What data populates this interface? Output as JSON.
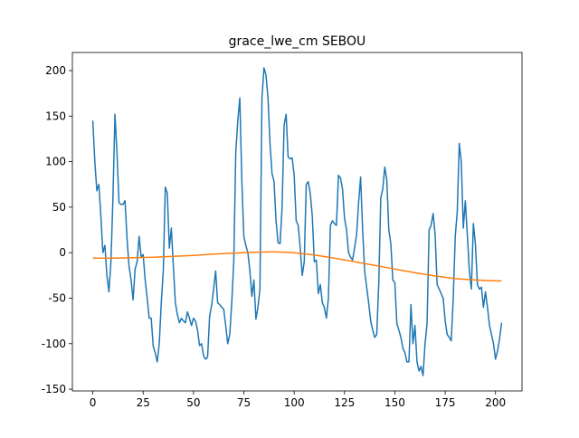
{
  "chart_data": {
    "type": "line",
    "title": "grace_lwe_cm SEBOU",
    "series": [
      {
        "color": "#1f77b4",
        "x": [
          0,
          1,
          2,
          3,
          4,
          5,
          6,
          7,
          8,
          9,
          10,
          11,
          12,
          13,
          14,
          15,
          16,
          17,
          18,
          19,
          20,
          21,
          22,
          23,
          24,
          25,
          26,
          27,
          28,
          29,
          30,
          31,
          32,
          33,
          34,
          35,
          36,
          37,
          38,
          39,
          40,
          41,
          42,
          43,
          44,
          45,
          46,
          47,
          48,
          49,
          50,
          51,
          52,
          53,
          54,
          55,
          56,
          57,
          58,
          59,
          60,
          61,
          62,
          63,
          64,
          65,
          66,
          67,
          68,
          69,
          70,
          71,
          72,
          73,
          74,
          75,
          76,
          77,
          78,
          79,
          80,
          81,
          82,
          83,
          84,
          85,
          86,
          87,
          88,
          89,
          90,
          91,
          92,
          93,
          94,
          95,
          96,
          97,
          98,
          99,
          100,
          101,
          102,
          103,
          104,
          105,
          106,
          107,
          108,
          109,
          110,
          111,
          112,
          113,
          114,
          115,
          116,
          117,
          118,
          119,
          120,
          121,
          122,
          123,
          124,
          125,
          126,
          127,
          128,
          129,
          130,
          131,
          132,
          133,
          134,
          135,
          136,
          137,
          138,
          139,
          140,
          141,
          142,
          143,
          144,
          145,
          146,
          147,
          148,
          149,
          150,
          151,
          152,
          153,
          154,
          155,
          156,
          157,
          158,
          159,
          160,
          161,
          162,
          163,
          164,
          165,
          166,
          167,
          168,
          169,
          170,
          171,
          172,
          173,
          174,
          175,
          176,
          177,
          178,
          179,
          180,
          181,
          182,
          183,
          184,
          185,
          186,
          187,
          188,
          189,
          190,
          191,
          192,
          193,
          194,
          195,
          196,
          197,
          198,
          199,
          200,
          201,
          202,
          203
        ],
        "values": [
          145,
          100,
          68,
          75,
          40,
          0,
          8,
          -25,
          -43,
          -10,
          60,
          152,
          110,
          55,
          53,
          53,
          57,
          15,
          -15,
          -30,
          -52,
          -18,
          -10,
          18,
          -5,
          -2,
          -30,
          -50,
          -72,
          -72,
          -103,
          -110,
          -120,
          -100,
          -55,
          -20,
          72,
          65,
          5,
          27,
          -15,
          -55,
          -68,
          -77,
          -72,
          -75,
          -77,
          -65,
          -72,
          -80,
          -72,
          -75,
          -85,
          -102,
          -100,
          -113,
          -117,
          -115,
          -70,
          -58,
          -40,
          -20,
          -55,
          -57,
          -60,
          -62,
          -80,
          -100,
          -90,
          -55,
          -10,
          110,
          145,
          170,
          80,
          18,
          8,
          0,
          -20,
          -48,
          -30,
          -73,
          -60,
          -40,
          170,
          203,
          195,
          170,
          120,
          87,
          78,
          35,
          11,
          10,
          50,
          140,
          152,
          105,
          103,
          104,
          85,
          35,
          30,
          5,
          -25,
          -10,
          75,
          78,
          65,
          40,
          -10,
          -8,
          -45,
          -35,
          -55,
          -60,
          -72,
          -50,
          30,
          35,
          32,
          30,
          85,
          82,
          70,
          38,
          25,
          0,
          -5,
          -8,
          5,
          20,
          55,
          83,
          25,
          -20,
          -38,
          -55,
          -75,
          -85,
          -93,
          -90,
          -35,
          60,
          70,
          94,
          80,
          25,
          10,
          -30,
          -33,
          -78,
          -85,
          -93,
          -105,
          -110,
          -120,
          -120,
          -57,
          -100,
          -80,
          -120,
          -130,
          -125,
          -135,
          -100,
          -78,
          25,
          30,
          43,
          20,
          -35,
          -40,
          -45,
          -50,
          -75,
          -90,
          -93,
          -97,
          -50,
          18,
          45,
          120,
          100,
          27,
          57,
          20,
          -20,
          -40,
          32,
          10,
          -35,
          -40,
          -38,
          -60,
          -43,
          -60,
          -80,
          -90,
          -100,
          -117,
          -108,
          -95,
          -77
        ]
      },
      {
        "color": "#ff7f0e",
        "x": [
          0,
          10,
          20,
          30,
          40,
          50,
          60,
          70,
          80,
          90,
          100,
          110,
          120,
          130,
          140,
          150,
          160,
          170,
          180,
          190,
          200,
          203
        ],
        "values": [
          -6,
          -6,
          -5.5,
          -5,
          -4,
          -3,
          -1.5,
          -0.5,
          0.5,
          1,
          0,
          -2.5,
          -6,
          -10,
          -14,
          -18,
          -22,
          -25.5,
          -28.5,
          -30,
          -31,
          -31
        ]
      }
    ],
    "xlim": [
      -10.15,
      213.15
    ],
    "xticks": [
      0,
      25,
      50,
      75,
      100,
      125,
      150,
      175,
      200
    ],
    "ylim": [
      -151.9,
      219.9
    ],
    "yticks": [
      -150,
      -100,
      -50,
      0,
      50,
      100,
      150,
      200
    ]
  }
}
